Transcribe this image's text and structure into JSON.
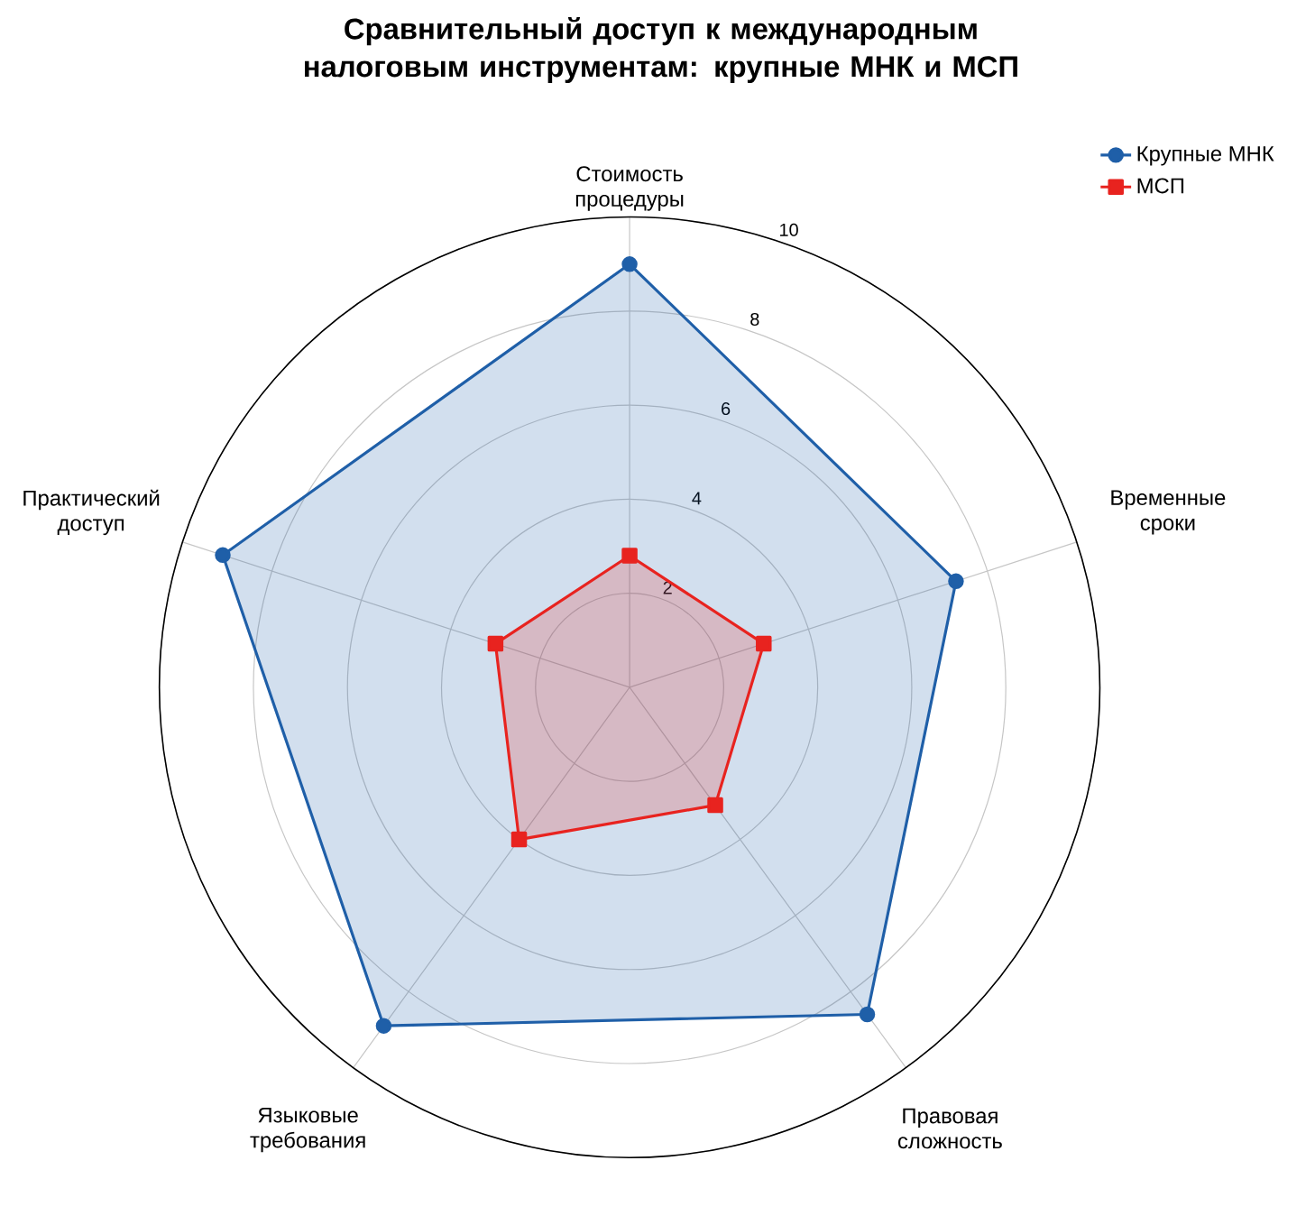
{
  "chart_data": {
    "type": "radar",
    "title": "Сравнительный доступ к международным налоговым инструментам: крупные МНК и МСП",
    "categories": [
      "Стоимость процедуры",
      "Временные сроки",
      "Правовая сложность",
      "Языковые требования",
      "Практический доступ"
    ],
    "series": [
      {
        "name": "Крупные МНК",
        "color": "#1f5fa8",
        "marker": "circle",
        "values": [
          9.0,
          7.3,
          8.6,
          8.9,
          9.1
        ]
      },
      {
        "name": "МСП",
        "color": "#e8231f",
        "marker": "square",
        "values": [
          2.8,
          3.0,
          3.1,
          4.0,
          3.0
        ]
      }
    ],
    "ylim": [
      0,
      10
    ],
    "yticks": [
      2,
      4,
      6,
      8,
      10
    ],
    "grid": true,
    "legend": "top right"
  }
}
